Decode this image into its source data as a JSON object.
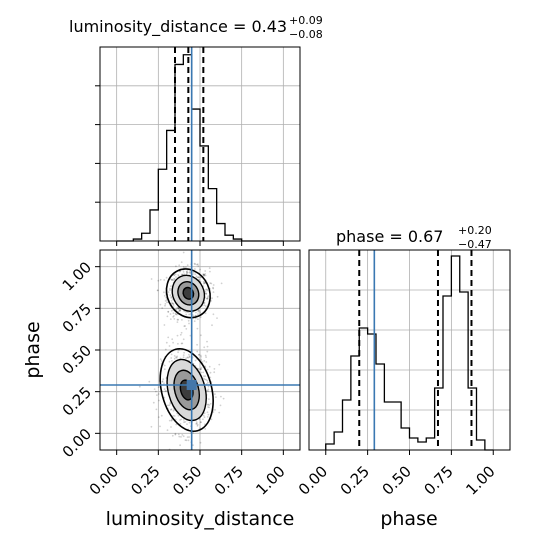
{
  "chart_data": {
    "type": "corner",
    "parameters": [
      "luminosity_distance",
      "phase"
    ],
    "truths": {
      "luminosity_distance": 0.45,
      "phase": 0.29
    },
    "panels": [
      {
        "id": "hist-luminosity-distance",
        "type": "histogram-step",
        "title": {
          "text": "luminosity_distance = 0.43",
          "plus": "+0.09",
          "minus": "−0.08"
        },
        "xlim": [
          -0.1,
          1.1
        ],
        "ylim": [
          0,
          1.0
        ],
        "bin_edges": [
          0.0,
          0.05,
          0.1,
          0.15,
          0.2,
          0.25,
          0.3,
          0.35,
          0.4,
          0.45,
          0.5,
          0.55,
          0.6,
          0.65,
          0.7,
          0.75,
          1.0
        ],
        "counts": [
          0,
          0,
          0.01,
          0.04,
          0.16,
          0.37,
          0.57,
          0.91,
          0.96,
          0.68,
          0.49,
          0.27,
          0.09,
          0.03,
          0.01,
          0
        ],
        "quantiles": [
          0.35,
          0.43,
          0.52
        ],
        "grid": true,
        "x_tick_labels_visible": false,
        "y_tick_labels_visible": false
      },
      {
        "id": "scatter-contour",
        "type": "2d-density",
        "xlabel": "luminosity_distance",
        "ylabel": "phase",
        "xlim": [
          -0.1,
          1.1
        ],
        "ylim": [
          -0.1,
          1.1
        ],
        "x_ticks": [
          "0.00",
          "0.25",
          "0.50",
          "0.75",
          "1.00"
        ],
        "y_ticks": [
          "0.00",
          "0.25",
          "0.50",
          "0.75",
          "1.00"
        ],
        "modes": [
          {
            "x": 0.43,
            "y": 0.84,
            "sx": 0.055,
            "sy": 0.065,
            "weight": 0.55
          },
          {
            "x": 0.42,
            "y": 0.26,
            "sx": 0.065,
            "sy": 0.11,
            "weight": 0.45
          }
        ],
        "grid": true
      },
      {
        "id": "hist-phase",
        "type": "histogram-step",
        "title": {
          "text": "phase = 0.67",
          "plus": "+0.20",
          "minus": "−0.47"
        },
        "xlabel": "phase",
        "xlim": [
          -0.1,
          1.1
        ],
        "ylim": [
          0,
          1.0
        ],
        "x_ticks": [
          "0.00",
          "0.25",
          "0.50",
          "0.75",
          "1.00"
        ],
        "bin_edges": [
          0.0,
          0.05,
          0.1,
          0.15,
          0.2,
          0.25,
          0.3,
          0.35,
          0.4,
          0.45,
          0.5,
          0.55,
          0.6,
          0.65,
          0.7,
          0.75,
          0.8,
          0.85,
          0.9,
          0.95,
          1.0
        ],
        "counts": [
          0.03,
          0.09,
          0.25,
          0.47,
          0.61,
          0.58,
          0.43,
          0.24,
          0.24,
          0.11,
          0.06,
          0.04,
          0.06,
          0.31,
          0.77,
          0.97,
          0.79,
          0.31,
          0.05,
          0
        ],
        "quantiles": [
          0.2,
          0.67,
          0.87
        ],
        "grid": true,
        "y_tick_labels_visible": false
      }
    ]
  }
}
